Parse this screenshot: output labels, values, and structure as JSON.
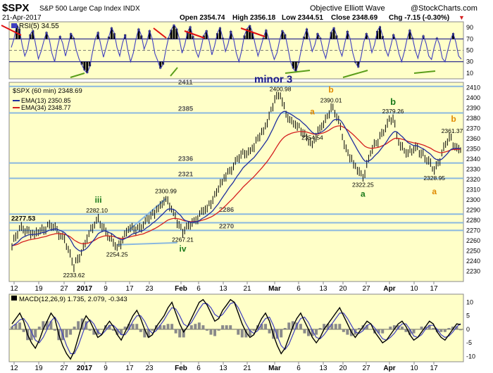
{
  "header": {
    "symbol": "$SPX",
    "name": "S&P 500 Large Cap Index  INDX",
    "date": "21-Apr-2017",
    "open": "Open 2354.74",
    "high": "High 2356.18",
    "low": "Low 2344.51",
    "close": "Close 2348.69",
    "chg": "Chg -7.15 (-0.30%)",
    "footer_left": "Objective Elliott Wave",
    "footer_right": "@StockCharts.com"
  },
  "colors": {
    "panel_bg": "#ffffc8",
    "price_line": "#000000",
    "ema13": "#1f2f9e",
    "ema34": "#d41f1f",
    "support_line": "#8ab8e0",
    "rsi_line": "#3f3fbf",
    "rsi_fill": "#000000",
    "trend_red": "#e01010",
    "trend_green": "#5a9e1a",
    "wave_green": "#1a7a1a",
    "wave_orange": "#e08a00",
    "wave_navy": "#1a1a8a",
    "macd_line": "#000000",
    "signal_line": "#3f3fbf",
    "hist": "#8a8a8a"
  },
  "chart_data": [
    {
      "type": "line",
      "title": "RSI(5) 34.55",
      "ylim": [
        0,
        100
      ],
      "yticks": [
        10,
        30,
        50,
        70,
        90
      ],
      "levels": [
        30,
        70
      ],
      "values": [
        55,
        70,
        95,
        88,
        60,
        40,
        52,
        78,
        85,
        60,
        35,
        48,
        66,
        82,
        70,
        45,
        30,
        55,
        75,
        62,
        40,
        58,
        80,
        72,
        50,
        35,
        25,
        15,
        10,
        22,
        48,
        70,
        82,
        60,
        38,
        55,
        74,
        90,
        80,
        55,
        40,
        62,
        78,
        50,
        30,
        45,
        70,
        88,
        76,
        52,
        65,
        85,
        70,
        44,
        32,
        18,
        25,
        50,
        72,
        86,
        95,
        88,
        70,
        45,
        60,
        82,
        92,
        75,
        50,
        38,
        55,
        76,
        85,
        66,
        42,
        58,
        80,
        90,
        72,
        48,
        62,
        84,
        70,
        45,
        30,
        50,
        76,
        88,
        94,
        82,
        60,
        40,
        55,
        72,
        86,
        70,
        50,
        34,
        45,
        68,
        85,
        78,
        55,
        30,
        18,
        12,
        28,
        52,
        74,
        88,
        70,
        48,
        60,
        80,
        72,
        50,
        36,
        58,
        82,
        90,
        76,
        52,
        40,
        62,
        84,
        70,
        45,
        28,
        20,
        38,
        64,
        80,
        70,
        46,
        60,
        84,
        92,
        75,
        52,
        40,
        58,
        78,
        66,
        44,
        30,
        48,
        70,
        86,
        72,
        50,
        36,
        56,
        76,
        62,
        40,
        34,
        55,
        72,
        60,
        36,
        30,
        50,
        68,
        80,
        64,
        40,
        34.55
      ]
    },
    {
      "type": "line",
      "title": "$SPX (60 min) 2348.69",
      "legend": [
        "EMA(13) 2350.85",
        "EMA(34) 2348.77"
      ],
      "ylim": [
        2220,
        2415
      ],
      "yticks": [
        2230,
        2240,
        2250,
        2260,
        2270,
        2280,
        2290,
        2300,
        2310,
        2320,
        2330,
        2340,
        2350,
        2360,
        2370,
        2380,
        2390,
        2400,
        2410
      ],
      "x_tick_labels": [
        "12",
        "19",
        "27",
        "2017",
        "9",
        "17",
        "23",
        "Feb",
        "6",
        "13",
        "21",
        "Mar",
        "6",
        "13",
        "20",
        "27",
        "Apr",
        "10",
        "17"
      ],
      "anchors": [
        {
          "x": 0,
          "y": 2255
        },
        {
          "x": 5,
          "y": 2274
        },
        {
          "x": 12,
          "y": 2266
        },
        {
          "x": 20,
          "y": 2276
        },
        {
          "x": 28,
          "y": 2262
        },
        {
          "x": 33,
          "y": 2233.62
        },
        {
          "x": 40,
          "y": 2262
        },
        {
          "x": 46,
          "y": 2282.1
        },
        {
          "x": 52,
          "y": 2262
        },
        {
          "x": 56,
          "y": 2254.25
        },
        {
          "x": 62,
          "y": 2270
        },
        {
          "x": 70,
          "y": 2275
        },
        {
          "x": 77,
          "y": 2290
        },
        {
          "x": 82,
          "y": 2300.99
        },
        {
          "x": 87,
          "y": 2284
        },
        {
          "x": 91,
          "y": 2267.21
        },
        {
          "x": 96,
          "y": 2278
        },
        {
          "x": 104,
          "y": 2292
        },
        {
          "x": 112,
          "y": 2318
        },
        {
          "x": 120,
          "y": 2340
        },
        {
          "x": 128,
          "y": 2350
        },
        {
          "x": 134,
          "y": 2368
        },
        {
          "x": 140,
          "y": 2398
        },
        {
          "x": 143,
          "y": 2400.98
        },
        {
          "x": 147,
          "y": 2380
        },
        {
          "x": 152,
          "y": 2372
        },
        {
          "x": 157,
          "y": 2362
        },
        {
          "x": 160,
          "y": 2354.54
        },
        {
          "x": 165,
          "y": 2372
        },
        {
          "x": 170,
          "y": 2390.01
        },
        {
          "x": 174,
          "y": 2378
        },
        {
          "x": 178,
          "y": 2350
        },
        {
          "x": 182,
          "y": 2335
        },
        {
          "x": 187,
          "y": 2322.25
        },
        {
          "x": 191,
          "y": 2345
        },
        {
          "x": 196,
          "y": 2362
        },
        {
          "x": 200,
          "y": 2375
        },
        {
          "x": 203,
          "y": 2379.26
        },
        {
          "x": 206,
          "y": 2356
        },
        {
          "x": 211,
          "y": 2345
        },
        {
          "x": 216,
          "y": 2352
        },
        {
          "x": 221,
          "y": 2338
        },
        {
          "x": 225,
          "y": 2328.95
        },
        {
          "x": 229,
          "y": 2345
        },
        {
          "x": 233,
          "y": 2361.37
        },
        {
          "x": 236,
          "y": 2352
        },
        {
          "x": 239,
          "y": 2348.69
        }
      ],
      "supports": [
        2411,
        2385,
        2336,
        2321,
        2286,
        2270,
        2277.53
      ],
      "support_labels": [
        {
          "text": "2411",
          "value": 2411
        },
        {
          "text": "2385",
          "value": 2385
        },
        {
          "text": "2336",
          "value": 2336
        },
        {
          "text": "2321",
          "value": 2321
        },
        {
          "text": "2286",
          "value": 2286
        },
        {
          "text": "2270",
          "value": 2270
        },
        {
          "text": "2277.53",
          "value": 2277.53
        }
      ],
      "price_labels": [
        {
          "text": "2233.62",
          "x": 33,
          "y": 2233.62
        },
        {
          "text": "2282.10",
          "x": 46,
          "y": 2282.1
        },
        {
          "text": "2254.25",
          "x": 56,
          "y": 2254.25
        },
        {
          "text": "2300.99",
          "x": 82,
          "y": 2300.99
        },
        {
          "text": "2267.21",
          "x": 91,
          "y": 2267.21
        },
        {
          "text": "2400.98",
          "x": 143,
          "y": 2400.98
        },
        {
          "text": "2354.54",
          "x": 160,
          "y": 2354.54
        },
        {
          "text": "2390.01",
          "x": 170,
          "y": 2390.01
        },
        {
          "text": "2322.25",
          "x": 187,
          "y": 2322.25
        },
        {
          "text": "2379.26",
          "x": 203,
          "y": 2379.26
        },
        {
          "text": "2328.95",
          "x": 225,
          "y": 2328.95
        },
        {
          "text": "2361.37",
          "x": 233,
          "y": 2361.37
        }
      ],
      "wave_labels": [
        {
          "text": "iii",
          "x": 46,
          "y": 2282.1,
          "color": "green"
        },
        {
          "text": "iv",
          "x": 91,
          "y": 2267.21,
          "color": "green"
        },
        {
          "text": "minor 3",
          "x": 143,
          "y": 2400.98,
          "color": "navy"
        },
        {
          "text": "a",
          "x": 160,
          "y": 2354.54,
          "color": "orange"
        },
        {
          "text": "b",
          "x": 170,
          "y": 2390.01,
          "color": "orange"
        },
        {
          "text": "a",
          "x": 187,
          "y": 2322.25,
          "color": "green"
        },
        {
          "text": "b",
          "x": 203,
          "y": 2379.26,
          "color": "green"
        },
        {
          "text": "a",
          "x": 225,
          "y": 2328.95,
          "color": "orange"
        },
        {
          "text": "b",
          "x": 233,
          "y": 2361.37,
          "color": "orange"
        }
      ]
    },
    {
      "type": "line",
      "title": "MACD(12,26,9) 1.735, 2.079, -0.343",
      "ylim": [
        -12,
        13
      ],
      "yticks": [
        -10,
        -5,
        0,
        5,
        10
      ],
      "macd": [
        2,
        4,
        6,
        3,
        -2,
        -5,
        -7,
        -4,
        0,
        3,
        6,
        4,
        -2,
        -6,
        -9,
        -11,
        -8,
        -3,
        2,
        5,
        3,
        0,
        -3,
        -2,
        1,
        3,
        1,
        -2,
        -4,
        -1,
        2,
        5,
        7,
        4,
        0,
        -3,
        -2,
        1,
        3,
        5,
        8,
        10,
        6,
        2,
        -1,
        1,
        4,
        7,
        10,
        11,
        9,
        6,
        3,
        4,
        7,
        9,
        11,
        10,
        6,
        2,
        -1,
        -3,
        -2,
        1,
        4,
        6,
        3,
        -2,
        -6,
        -9,
        -7,
        -3,
        1,
        4,
        6,
        3,
        0,
        -3,
        -5,
        -3,
        0,
        2,
        4,
        6,
        8,
        5,
        2,
        -1,
        -3,
        -1,
        1,
        3,
        2,
        -1,
        -3,
        -5,
        -4,
        -2,
        0,
        2,
        3,
        1,
        -2,
        -4,
        -3,
        -1,
        1,
        3,
        2,
        -1,
        -3,
        -4,
        -2,
        0,
        2,
        1.735
      ],
      "signal": [
        1,
        2,
        3.5,
        4,
        2,
        -1,
        -4,
        -5,
        -3,
        0,
        3,
        4.5,
        2,
        -2,
        -6,
        -9,
        -9,
        -6,
        -2,
        2,
        3.5,
        2,
        -1,
        -2,
        -0.5,
        1.5,
        1.5,
        0,
        -2,
        -2,
        0,
        3,
        5,
        5,
        3,
        0,
        -1.5,
        -0.5,
        1.5,
        3.5,
        6,
        8,
        7.5,
        5,
        2,
        1,
        2.5,
        5,
        7.5,
        9.5,
        9.5,
        8,
        5.5,
        4.5,
        5.5,
        7.5,
        9.5,
        10,
        8,
        5,
        2,
        -0.5,
        -1.5,
        -0.5,
        2,
        4,
        4.5,
        1.5,
        -2.5,
        -6,
        -7.5,
        -5.5,
        -2,
        1.5,
        4,
        4.5,
        2.5,
        -0.5,
        -3,
        -3.5,
        -2,
        0,
        2,
        4,
        6,
        6,
        4,
        1.5,
        -1,
        -1.5,
        -0.5,
        1.5,
        2,
        0.5,
        -1.5,
        -3.5,
        -4,
        -3,
        -1.5,
        0.5,
        2,
        2,
        0,
        -2.5,
        -3,
        -2,
        0,
        1.5,
        1.5,
        0,
        -2,
        -3,
        -2.5,
        -1,
        1,
        2.079
      ],
      "x_tick_labels": [
        "12",
        "19",
        "27",
        "2017",
        "9",
        "17",
        "23",
        "Feb",
        "6",
        "13",
        "21",
        "Mar",
        "6",
        "13",
        "20",
        "27",
        "Apr",
        "10",
        "17"
      ]
    }
  ]
}
